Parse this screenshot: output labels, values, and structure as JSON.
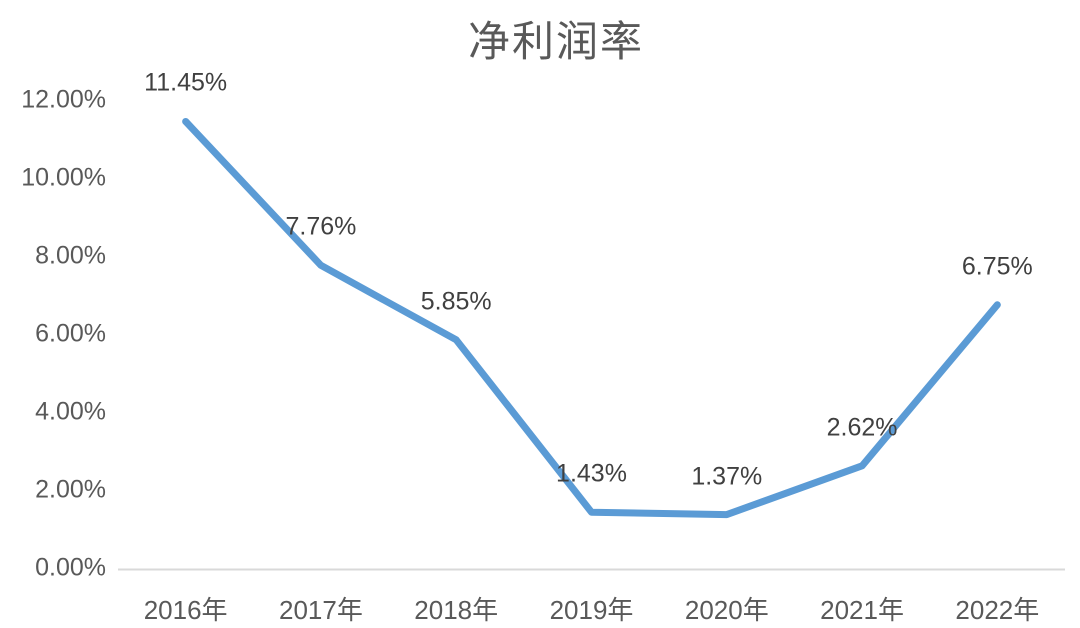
{
  "chart": {
    "title": "净利润率",
    "colors": {
      "series_line": "#5b9bd5",
      "axis_line": "#d9d9d9",
      "tick_label": "#595959",
      "data_label": "#404040",
      "title": "#595959",
      "background": "#ffffff"
    }
  },
  "chart_data": {
    "type": "line",
    "title": "净利润率",
    "categories": [
      "2016年",
      "2017年",
      "2018年",
      "2019年",
      "2020年",
      "2021年",
      "2022年"
    ],
    "series": [
      {
        "name": "净利润率",
        "values": [
          11.45,
          7.76,
          5.85,
          1.43,
          1.37,
          2.62,
          6.75
        ],
        "data_labels": [
          "11.45%",
          "7.76%",
          "5.85%",
          "1.43%",
          "1.37%",
          "2.62%",
          "6.75%"
        ],
        "color": "#5b9bd5"
      }
    ],
    "xlabel": "",
    "ylabel": "",
    "ylim": [
      0,
      12
    ],
    "y_ticks": [
      {
        "value": 0,
        "label": "0.00%"
      },
      {
        "value": 2,
        "label": "2.00%"
      },
      {
        "value": 4,
        "label": "4.00%"
      },
      {
        "value": 6,
        "label": "6.00%"
      },
      {
        "value": 8,
        "label": "8.00%"
      },
      {
        "value": 10,
        "label": "10.00%"
      },
      {
        "value": 12,
        "label": "12.00%"
      }
    ],
    "grid": false,
    "legend_position": "none"
  }
}
